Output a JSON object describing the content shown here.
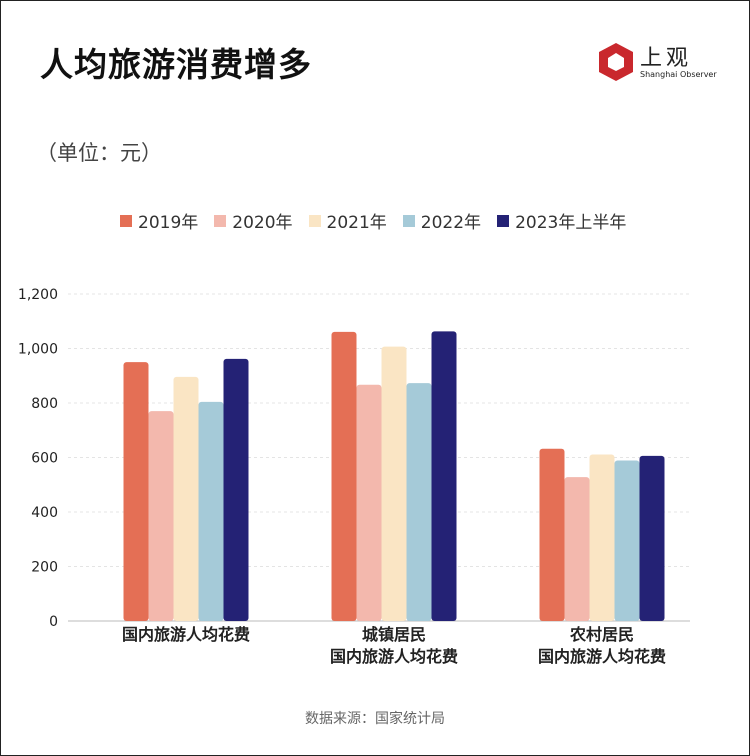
{
  "title": "人均旅游消费增多",
  "unit_label": "（单位：元）",
  "logo": {
    "cn": "上观",
    "en": "Shanghai Observer"
  },
  "source": "数据来源：国家统计局",
  "chart_data": {
    "type": "bar",
    "title": "人均旅游消费增多",
    "categories": [
      [
        "国内旅游人均花费"
      ],
      [
        "城镇居民",
        "国内旅游人均花费"
      ],
      [
        "农村居民",
        "国内旅游人均花费"
      ]
    ],
    "series": [
      {
        "name": "2019年",
        "color": "#e46f55",
        "values": [
          950,
          1061,
          632
        ]
      },
      {
        "name": "2020年",
        "color": "#f3b8ad",
        "values": [
          770,
          867,
          528
        ]
      },
      {
        "name": "2021年",
        "color": "#fae5c4",
        "values": [
          896,
          1007,
          611
        ]
      },
      {
        "name": "2022年",
        "color": "#a5cad8",
        "values": [
          804,
          873,
          589
        ]
      },
      {
        "name": "2023年上半年",
        "color": "#242275",
        "values": [
          962,
          1063,
          606
        ]
      }
    ],
    "yticks": [
      "0",
      "200",
      "400",
      "600",
      "800",
      "1,000",
      "1,200"
    ],
    "ylim": [
      0,
      1200
    ],
    "grid": true,
    "legend": "top"
  }
}
